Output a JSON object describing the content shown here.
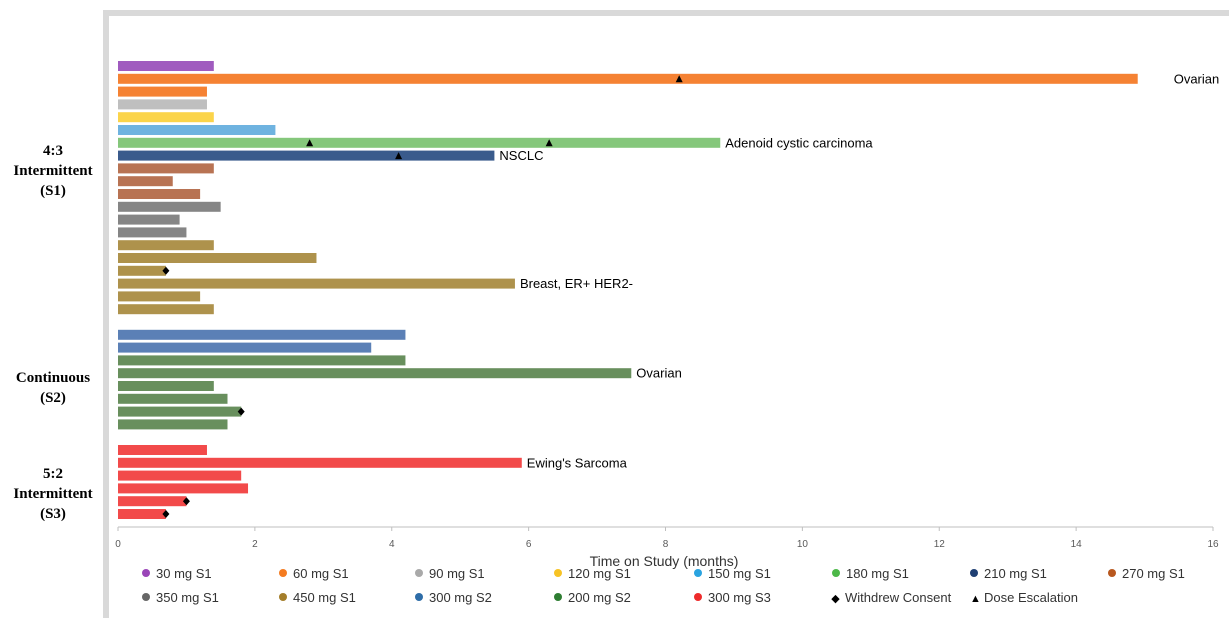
{
  "chart_data": {
    "type": "bar",
    "orientation": "horizontal",
    "xlabel": "Time on Study (months)",
    "xlim": [
      0,
      16
    ],
    "xticks": [
      0,
      2,
      4,
      6,
      8,
      10,
      12,
      14,
      16
    ],
    "grid": false,
    "legend_position": "bottom",
    "groups": [
      {
        "label_lines": [
          "4:3",
          "Intermittent",
          "(S1)"
        ],
        "rows": [
          0,
          20
        ]
      },
      {
        "label_lines": [
          "Continuous",
          "(S2)"
        ],
        "rows": [
          21,
          28
        ]
      },
      {
        "label_lines": [
          "5:2",
          "Intermittent",
          "(S3)"
        ],
        "rows": [
          29,
          34
        ]
      }
    ],
    "bars": [
      {
        "value": 1.4,
        "series": "30 mg S1"
      },
      {
        "value": 14.9,
        "series": "60 mg S1",
        "annotation": "Ovarian",
        "dose_escalation": [
          8.2
        ]
      },
      {
        "value": 1.3,
        "series": "60 mg S1"
      },
      {
        "value": 1.3,
        "series": "90 mg S1"
      },
      {
        "value": 1.4,
        "series": "120 mg S1"
      },
      {
        "value": 2.3,
        "series": "150 mg S1"
      },
      {
        "value": 8.8,
        "series": "180 mg S1",
        "annotation": "Adenoid cystic carcinoma",
        "dose_escalation": [
          2.8,
          6.3
        ]
      },
      {
        "value": 5.5,
        "series": "210 mg S1",
        "annotation": "NSCLC",
        "dose_escalation": [
          4.1
        ]
      },
      {
        "value": 1.4,
        "series": "270 mg S1"
      },
      {
        "value": 0.8,
        "series": "270 mg S1"
      },
      {
        "value": 1.2,
        "series": "270 mg S1"
      },
      {
        "value": 1.5,
        "series": "350 mg S1"
      },
      {
        "value": 0.9,
        "series": "350 mg S1"
      },
      {
        "value": 1.0,
        "series": "350 mg S1"
      },
      {
        "value": 1.4,
        "series": "450 mg S1"
      },
      {
        "value": 2.9,
        "series": "450 mg S1"
      },
      {
        "value": 0.7,
        "series": "450 mg S1",
        "withdrew": true
      },
      {
        "value": 5.8,
        "series": "450 mg S1",
        "annotation": "Breast, ER+ HER2-"
      },
      {
        "value": 1.2,
        "series": "450 mg S1"
      },
      {
        "value": 1.4,
        "series": "450 mg S1"
      },
      {
        "gap": true
      },
      {
        "value": 4.2,
        "series": "300 mg S2"
      },
      {
        "value": 3.7,
        "series": "300 mg S2"
      },
      {
        "value": 4.2,
        "series": "200 mg S2"
      },
      {
        "value": 7.5,
        "series": "200 mg S2",
        "annotation": "Ovarian"
      },
      {
        "value": 1.4,
        "series": "200 mg S2"
      },
      {
        "value": 1.6,
        "series": "200 mg S2"
      },
      {
        "value": 1.8,
        "series": "200 mg S2",
        "withdrew": true
      },
      {
        "value": 1.6,
        "series": "200 mg S2"
      },
      {
        "gap": true
      },
      {
        "value": 1.3,
        "series": "300 mg S3"
      },
      {
        "value": 5.9,
        "series": "300 mg S3",
        "annotation": "Ewing's Sarcoma"
      },
      {
        "value": 1.8,
        "series": "300 mg S3"
      },
      {
        "value": 1.9,
        "series": "300 mg S3"
      },
      {
        "value": 1.0,
        "series": "300 mg S3",
        "withdrew": true
      },
      {
        "value": 0.7,
        "series": "300 mg S3",
        "withdrew": true
      }
    ],
    "series": [
      {
        "name": "30 mg S1",
        "color": "#a05bbf",
        "marker": "#9a45b8"
      },
      {
        "name": "60 mg S1",
        "color": "#f58233",
        "marker": "#f47b20"
      },
      {
        "name": "90 mg S1",
        "color": "#bfbfbf",
        "marker": "#a9a9a9"
      },
      {
        "name": "120 mg S1",
        "color": "#fbd44a",
        "marker": "#f7c325"
      },
      {
        "name": "150 mg S1",
        "color": "#6fb3e0",
        "marker": "#29a3e0"
      },
      {
        "name": "180 mg S1",
        "color": "#85c77b",
        "marker": "#4cb848"
      },
      {
        "name": "210 mg S1",
        "color": "#3a5b8c",
        "marker": "#1f3f73"
      },
      {
        "name": "270 mg S1",
        "color": "#b87353",
        "marker": "#b8581f"
      },
      {
        "name": "350 mg S1",
        "color": "#858585",
        "marker": "#676767"
      },
      {
        "name": "450 mg S1",
        "color": "#ae924c",
        "marker": "#a47e2a"
      },
      {
        "name": "300 mg S2",
        "color": "#5b80b6",
        "marker": "#2e6da8"
      },
      {
        "name": "200 mg S2",
        "color": "#688f5d",
        "marker": "#2e7d32"
      },
      {
        "name": "300 mg S3",
        "color": "#f24a4a",
        "marker": "#ee2b2b"
      }
    ],
    "legend": [
      {
        "label": "30 mg S1",
        "kind": "dot",
        "series": "30 mg S1"
      },
      {
        "label": "60 mg S1",
        "kind": "dot",
        "series": "60 mg S1"
      },
      {
        "label": "90 mg S1",
        "kind": "dot",
        "series": "90 mg S1"
      },
      {
        "label": "120 mg S1",
        "kind": "dot",
        "series": "120 mg S1"
      },
      {
        "label": "150 mg S1",
        "kind": "dot",
        "series": "150 mg S1"
      },
      {
        "label": "180 mg S1",
        "kind": "dot",
        "series": "180 mg S1"
      },
      {
        "label": "210 mg S1",
        "kind": "dot",
        "series": "210 mg S1"
      },
      {
        "label": "270 mg S1",
        "kind": "dot",
        "series": "270 mg S1"
      },
      {
        "label": "350 mg S1",
        "kind": "dot",
        "series": "350 mg S1"
      },
      {
        "label": "450 mg S1",
        "kind": "dot",
        "series": "450 mg S1"
      },
      {
        "label": "300 mg S2",
        "kind": "dot",
        "series": "300 mg S2"
      },
      {
        "label": "200 mg S2",
        "kind": "dot",
        "series": "200 mg S2"
      },
      {
        "label": "300 mg S3",
        "kind": "dot",
        "series": "300 mg S3"
      },
      {
        "label": "Withdrew Consent",
        "kind": "diamond"
      },
      {
        "label": "Dose Escalation",
        "kind": "triangle"
      }
    ]
  }
}
